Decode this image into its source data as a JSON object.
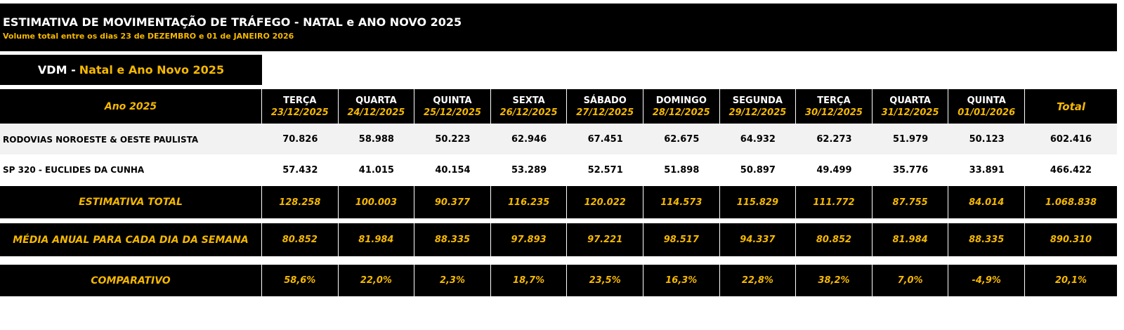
{
  "header": {
    "title": "ESTIMATIVA DE MOVIMENTAÇÃO DE TRÁFEGO - NATAL e ANO NOVO 2025",
    "subtitle": "Volume total entre os dias 23 de DEZEMBRO e 01 de JANEIRO 2026"
  },
  "vdm": {
    "label": "VDM -",
    "highlight": "Natal e Ano Novo 2025"
  },
  "table": {
    "first_header": "Ano 2025",
    "columns": [
      {
        "day": "TERÇA",
        "date": "23/12/2025"
      },
      {
        "day": "QUARTA",
        "date": "24/12/2025"
      },
      {
        "day": "QUINTA",
        "date": "25/12/2025"
      },
      {
        "day": "SEXTA",
        "date": "26/12/2025"
      },
      {
        "day": "SÁBADO",
        "date": "27/12/2025"
      },
      {
        "day": "DOMINGO",
        "date": "28/12/2025"
      },
      {
        "day": "SEGUNDA",
        "date": "29/12/2025"
      },
      {
        "day": "TERÇA",
        "date": "30/12/2025"
      },
      {
        "day": "QUARTA",
        "date": "31/12/2025"
      },
      {
        "day": "QUINTA",
        "date": "01/01/2026"
      }
    ],
    "total_header": "Total",
    "rows": [
      {
        "label": "RODOVIAS NOROESTE & OESTE PAULISTA",
        "values": [
          "70.826",
          "58.988",
          "50.223",
          "62.946",
          "67.451",
          "62.675",
          "64.932",
          "62.273",
          "51.979",
          "50.123",
          "602.416"
        ]
      },
      {
        "label": "SP 320 - EUCLIDES DA CUNHA",
        "values": [
          "57.432",
          "41.015",
          "40.154",
          "53.289",
          "52.571",
          "51.898",
          "50.897",
          "49.499",
          "35.776",
          "33.891",
          "466.422"
        ]
      },
      {
        "label": "ESTIMATIVA TOTAL",
        "values": [
          "128.258",
          "100.003",
          "90.377",
          "116.235",
          "120.022",
          "114.573",
          "115.829",
          "111.772",
          "87.755",
          "84.014",
          "1.068.838"
        ]
      },
      {
        "label": "MÉDIA ANUAL PARA CADA DIA DA SEMANA",
        "values": [
          "80.852",
          "81.984",
          "88.335",
          "97.893",
          "97.221",
          "98.517",
          "94.337",
          "80.852",
          "81.984",
          "88.335",
          "890.310"
        ]
      },
      {
        "label": "COMPARATIVO",
        "values": [
          "58,6%",
          "22,0%",
          "2,3%",
          "18,7%",
          "23,5%",
          "16,3%",
          "22,8%",
          "38,2%",
          "7,0%",
          "-4,9%",
          "20,1%"
        ]
      }
    ]
  }
}
